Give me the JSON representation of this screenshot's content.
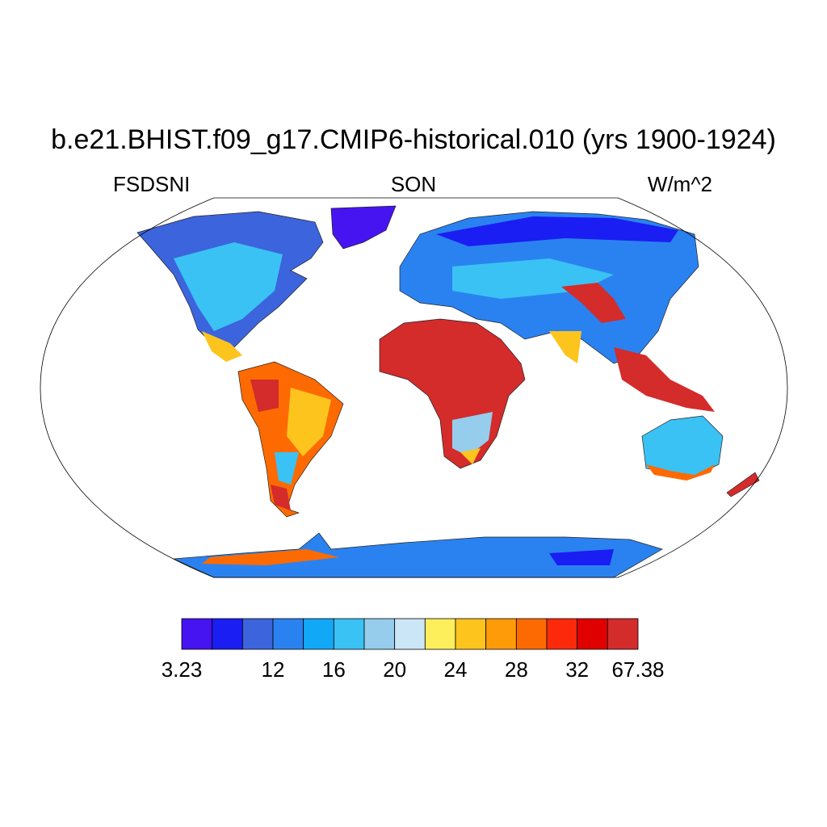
{
  "title": "b.e21.BHIST.f09_g17.CMIP6-historical.010 (yrs 1900-1924)",
  "left_string": "FSDSNI",
  "center_string": "SON",
  "right_string": "W/m^2",
  "colorbar": {
    "colors": [
      "#4614f0",
      "#1a1ef2",
      "#3c64dc",
      "#2a82f0",
      "#12a8f8",
      "#3ac2f4",
      "#96cdec",
      "#cbe6f7",
      "#fdee5c",
      "#fdc41e",
      "#fd9b08",
      "#fe6a02",
      "#fc2a0a",
      "#e00000",
      "#d42b2b"
    ],
    "boundaries": [
      3.23,
      null,
      null,
      12,
      null,
      16,
      null,
      20,
      null,
      24,
      null,
      28,
      null,
      32,
      null,
      67.38
    ]
  }
}
